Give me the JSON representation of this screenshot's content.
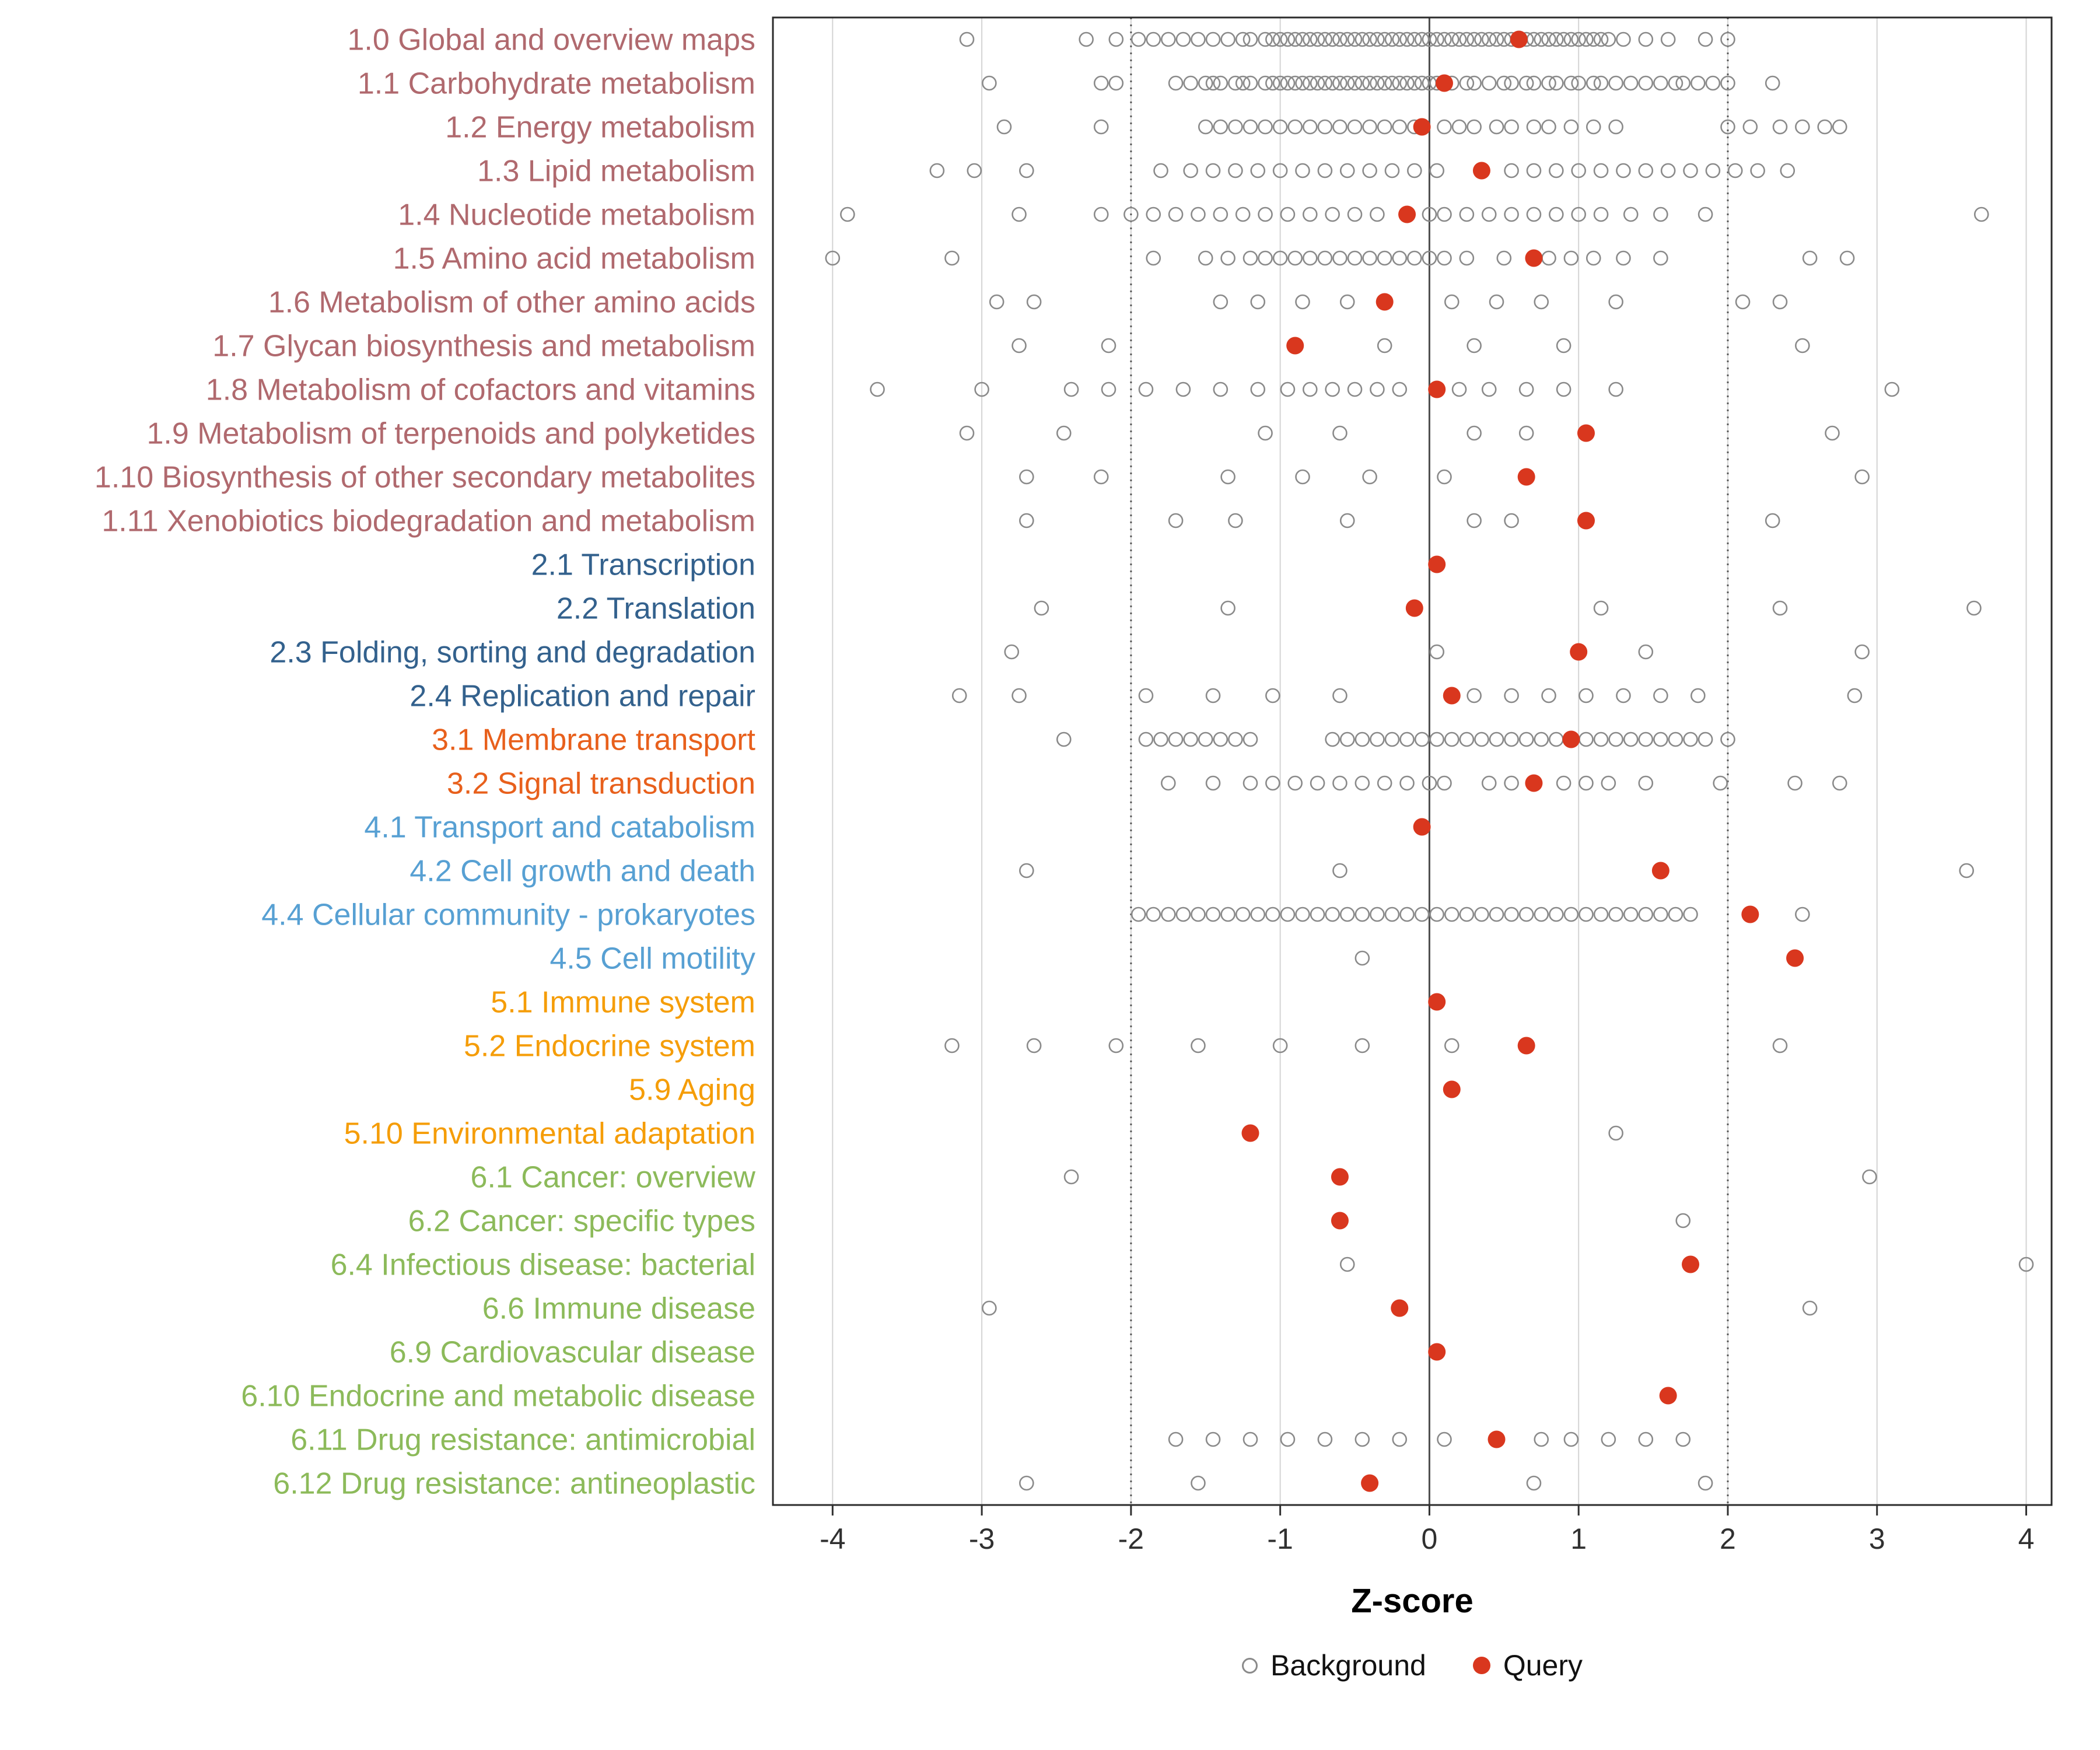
{
  "chart_data": {
    "type": "scatter",
    "title": "",
    "xlabel": "Z-score",
    "ylabel": "",
    "xlim": [
      -4.4,
      4.17
    ],
    "xticks": [
      -4,
      -3,
      -2,
      -1,
      0,
      1,
      2,
      3,
      4
    ],
    "grid": "vertical-only",
    "legend_position": "bottom",
    "legend": {
      "background": "Background",
      "query": "Query"
    },
    "ref_lines": {
      "solid": [
        0
      ],
      "dotted": [
        -2,
        2
      ]
    },
    "colors": {
      "query": "#d9371e",
      "background_stroke": "#8a8a8a",
      "grid": "#d4d4d4",
      "ref_solid": "#4d4d4d",
      "ref_dotted": "#5a5a5a",
      "axis_text": "#303030",
      "panel_border": "#2b2b2b",
      "groups": {
        "g1": "#b0696e",
        "g2": "#33618d",
        "g3": "#e8601c",
        "g4": "#57a0d3",
        "g5": "#f59d08",
        "g6": "#8cba5a"
      }
    },
    "categories": [
      {
        "label": "1.0 Global and overview maps",
        "group": "g1",
        "query": 0.6,
        "background": [
          -3.1,
          -2.3,
          -2.1,
          -1.95,
          -1.85,
          -1.75,
          -1.65,
          -1.55,
          -1.45,
          -1.35,
          -1.25,
          -1.2,
          -1.1,
          -1.05,
          -1.0,
          -0.95,
          -0.9,
          -0.85,
          -0.8,
          -0.75,
          -0.7,
          -0.65,
          -0.6,
          -0.55,
          -0.5,
          -0.45,
          -0.4,
          -0.35,
          -0.3,
          -0.25,
          -0.2,
          -0.15,
          -0.1,
          -0.05,
          0.0,
          0.05,
          0.1,
          0.15,
          0.2,
          0.25,
          0.3,
          0.35,
          0.4,
          0.45,
          0.5,
          0.55,
          0.65,
          0.7,
          0.75,
          0.8,
          0.85,
          0.9,
          0.95,
          1.0,
          1.05,
          1.1,
          1.15,
          1.2,
          1.3,
          1.45,
          1.6,
          1.85,
          2.0
        ]
      },
      {
        "label": "1.1 Carbohydrate metabolism",
        "group": "g1",
        "query": 0.1,
        "background": [
          -2.95,
          -2.2,
          -2.1,
          -1.7,
          -1.6,
          -1.5,
          -1.45,
          -1.4,
          -1.3,
          -1.25,
          -1.2,
          -1.1,
          -1.05,
          -1.0,
          -0.95,
          -0.9,
          -0.85,
          -0.8,
          -0.75,
          -0.7,
          -0.65,
          -0.6,
          -0.55,
          -0.5,
          -0.45,
          -0.4,
          -0.35,
          -0.3,
          -0.25,
          -0.2,
          -0.15,
          -0.1,
          -0.05,
          0.0,
          0.05,
          0.15,
          0.25,
          0.3,
          0.4,
          0.5,
          0.55,
          0.65,
          0.7,
          0.8,
          0.85,
          0.95,
          1.0,
          1.1,
          1.15,
          1.25,
          1.35,
          1.45,
          1.55,
          1.65,
          1.7,
          1.8,
          1.9,
          2.0,
          2.3
        ]
      },
      {
        "label": "1.2 Energy metabolism",
        "group": "g1",
        "query": -0.05,
        "background": [
          -2.85,
          -2.2,
          -1.5,
          -1.4,
          -1.3,
          -1.2,
          -1.1,
          -1.0,
          -0.9,
          -0.8,
          -0.7,
          -0.6,
          -0.5,
          -0.4,
          -0.3,
          -0.2,
          -0.1,
          0.1,
          0.2,
          0.3,
          0.45,
          0.55,
          0.7,
          0.8,
          0.95,
          1.1,
          1.25,
          2.0,
          2.15,
          2.35,
          2.5,
          2.65,
          2.75
        ]
      },
      {
        "label": "1.3 Lipid metabolism",
        "group": "g1",
        "query": 0.35,
        "background": [
          -3.3,
          -3.05,
          -2.7,
          -1.8,
          -1.6,
          -1.45,
          -1.3,
          -1.15,
          -1.0,
          -0.85,
          -0.7,
          -0.55,
          -0.4,
          -0.25,
          -0.1,
          0.05,
          0.55,
          0.7,
          0.85,
          1.0,
          1.15,
          1.3,
          1.45,
          1.6,
          1.75,
          1.9,
          2.05,
          2.2,
          2.4
        ]
      },
      {
        "label": "1.4 Nucleotide metabolism",
        "group": "g1",
        "query": -0.15,
        "background": [
          -3.9,
          -2.75,
          -2.2,
          -2.0,
          -1.85,
          -1.7,
          -1.55,
          -1.4,
          -1.25,
          -1.1,
          -0.95,
          -0.8,
          -0.65,
          -0.5,
          -0.35,
          0.0,
          0.1,
          0.25,
          0.4,
          0.55,
          0.7,
          0.85,
          1.0,
          1.15,
          1.35,
          1.55,
          1.85,
          3.7
        ]
      },
      {
        "label": "1.5 Amino acid metabolism",
        "group": "g1",
        "query": 0.7,
        "background": [
          -4.0,
          -3.2,
          -1.85,
          -1.5,
          -1.35,
          -1.2,
          -1.1,
          -1.0,
          -0.9,
          -0.8,
          -0.7,
          -0.6,
          -0.5,
          -0.4,
          -0.3,
          -0.2,
          -0.1,
          0.0,
          0.1,
          0.25,
          0.5,
          0.8,
          0.95,
          1.1,
          1.3,
          1.55,
          2.55,
          2.8
        ]
      },
      {
        "label": "1.6 Metabolism of other amino acids",
        "group": "g1",
        "query": -0.3,
        "background": [
          -2.9,
          -2.65,
          -1.4,
          -1.15,
          -0.85,
          -0.55,
          0.15,
          0.45,
          0.75,
          1.25,
          2.1,
          2.35
        ]
      },
      {
        "label": "1.7 Glycan biosynthesis and metabolism",
        "group": "g1",
        "query": -0.9,
        "background": [
          -2.75,
          -2.15,
          -0.3,
          0.3,
          0.9,
          2.5
        ]
      },
      {
        "label": "1.8 Metabolism of cofactors and vitamins",
        "group": "g1",
        "query": 0.05,
        "background": [
          -3.7,
          -3.0,
          -2.4,
          -2.15,
          -1.9,
          -1.65,
          -1.4,
          -1.15,
          -0.95,
          -0.8,
          -0.65,
          -0.5,
          -0.35,
          -0.2,
          0.2,
          0.4,
          0.65,
          0.9,
          1.25,
          3.1
        ]
      },
      {
        "label": "1.9 Metabolism of terpenoids and polyketides",
        "group": "g1",
        "query": 1.05,
        "background": [
          -3.1,
          -2.45,
          -1.1,
          -0.6,
          0.3,
          0.65,
          2.7
        ]
      },
      {
        "label": "1.10 Biosynthesis of other secondary metabolites",
        "group": "g1",
        "query": 0.65,
        "background": [
          -2.7,
          -2.2,
          -1.35,
          -0.85,
          -0.4,
          0.1,
          2.9
        ]
      },
      {
        "label": "1.11 Xenobiotics biodegradation and metabolism",
        "group": "g1",
        "query": 1.05,
        "background": [
          -2.7,
          -1.7,
          -1.3,
          -0.55,
          0.3,
          0.55,
          2.3
        ]
      },
      {
        "label": "2.1 Transcription",
        "group": "g2",
        "query": 0.05,
        "background": []
      },
      {
        "label": "2.2 Translation",
        "group": "g2",
        "query": -0.1,
        "background": [
          -2.6,
          -1.35,
          1.15,
          2.35,
          3.65
        ]
      },
      {
        "label": "2.3 Folding, sorting and degradation",
        "group": "g2",
        "query": 1.0,
        "background": [
          -2.8,
          0.05,
          1.45,
          2.9
        ]
      },
      {
        "label": "2.4 Replication and repair",
        "group": "g2",
        "query": 0.15,
        "background": [
          -3.15,
          -2.75,
          -1.9,
          -1.45,
          -1.05,
          -0.6,
          0.3,
          0.55,
          0.8,
          1.05,
          1.3,
          1.55,
          1.8,
          2.85
        ]
      },
      {
        "label": "3.1 Membrane transport",
        "group": "g3",
        "query": 0.95,
        "background": [
          -2.45,
          -1.9,
          -1.8,
          -1.7,
          -1.6,
          -1.5,
          -1.4,
          -1.3,
          -1.2,
          -0.65,
          -0.55,
          -0.45,
          -0.35,
          -0.25,
          -0.15,
          -0.05,
          0.05,
          0.15,
          0.25,
          0.35,
          0.45,
          0.55,
          0.65,
          0.75,
          0.85,
          1.05,
          1.15,
          1.25,
          1.35,
          1.45,
          1.55,
          1.65,
          1.75,
          1.85,
          2.0
        ]
      },
      {
        "label": "3.2 Signal transduction",
        "group": "g3",
        "query": 0.7,
        "background": [
          -1.75,
          -1.45,
          -1.2,
          -1.05,
          -0.9,
          -0.75,
          -0.6,
          -0.45,
          -0.3,
          -0.15,
          0.0,
          0.1,
          0.4,
          0.55,
          0.9,
          1.05,
          1.2,
          1.45,
          1.95,
          2.45,
          2.75
        ]
      },
      {
        "label": "4.1 Transport and catabolism",
        "group": "g4",
        "query": -0.05,
        "background": []
      },
      {
        "label": "4.2 Cell growth and death",
        "group": "g4",
        "query": 1.55,
        "background": [
          -2.7,
          -0.6,
          3.6
        ]
      },
      {
        "label": "4.4 Cellular community - prokaryotes",
        "group": "g4",
        "query": 2.15,
        "background": [
          -1.95,
          -1.85,
          -1.75,
          -1.65,
          -1.55,
          -1.45,
          -1.35,
          -1.25,
          -1.15,
          -1.05,
          -0.95,
          -0.85,
          -0.75,
          -0.65,
          -0.55,
          -0.45,
          -0.35,
          -0.25,
          -0.15,
          -0.05,
          0.05,
          0.15,
          0.25,
          0.35,
          0.45,
          0.55,
          0.65,
          0.75,
          0.85,
          0.95,
          1.05,
          1.15,
          1.25,
          1.35,
          1.45,
          1.55,
          1.65,
          1.75,
          2.5
        ]
      },
      {
        "label": "4.5 Cell motility",
        "group": "g4",
        "query": 2.45,
        "background": [
          -0.45
        ]
      },
      {
        "label": "5.1 Immune system",
        "group": "g5",
        "query": 0.05,
        "background": []
      },
      {
        "label": "5.2 Endocrine system",
        "group": "g5",
        "query": 0.65,
        "background": [
          -3.2,
          -2.65,
          -2.1,
          -1.55,
          -1.0,
          -0.45,
          0.15,
          2.35
        ]
      },
      {
        "label": "5.9 Aging",
        "group": "g5",
        "query": 0.15,
        "background": []
      },
      {
        "label": "5.10 Environmental adaptation",
        "group": "g5",
        "query": -1.2,
        "background": [
          1.25
        ]
      },
      {
        "label": "6.1 Cancer: overview",
        "group": "g6",
        "query": -0.6,
        "background": [
          -2.4,
          2.95
        ]
      },
      {
        "label": "6.2 Cancer: specific types",
        "group": "g6",
        "query": -0.6,
        "background": [
          1.7
        ]
      },
      {
        "label": "6.4 Infectious disease: bacterial",
        "group": "g6",
        "query": 1.75,
        "background": [
          -0.55,
          4.0
        ]
      },
      {
        "label": "6.6 Immune disease",
        "group": "g6",
        "query": -0.2,
        "background": [
          -2.95,
          2.55
        ]
      },
      {
        "label": "6.9 Cardiovascular disease",
        "group": "g6",
        "query": 0.05,
        "background": []
      },
      {
        "label": "6.10 Endocrine and metabolic disease",
        "group": "g6",
        "query": 1.6,
        "background": []
      },
      {
        "label": "6.11 Drug resistance: antimicrobial",
        "group": "g6",
        "query": 0.45,
        "background": [
          -1.7,
          -1.45,
          -1.2,
          -0.95,
          -0.7,
          -0.45,
          -0.2,
          0.1,
          0.75,
          0.95,
          1.2,
          1.45,
          1.7
        ]
      },
      {
        "label": "6.12 Drug resistance: antineoplastic",
        "group": "g6",
        "query": -0.4,
        "background": [
          -2.7,
          -1.55,
          0.7,
          1.85
        ]
      }
    ]
  }
}
